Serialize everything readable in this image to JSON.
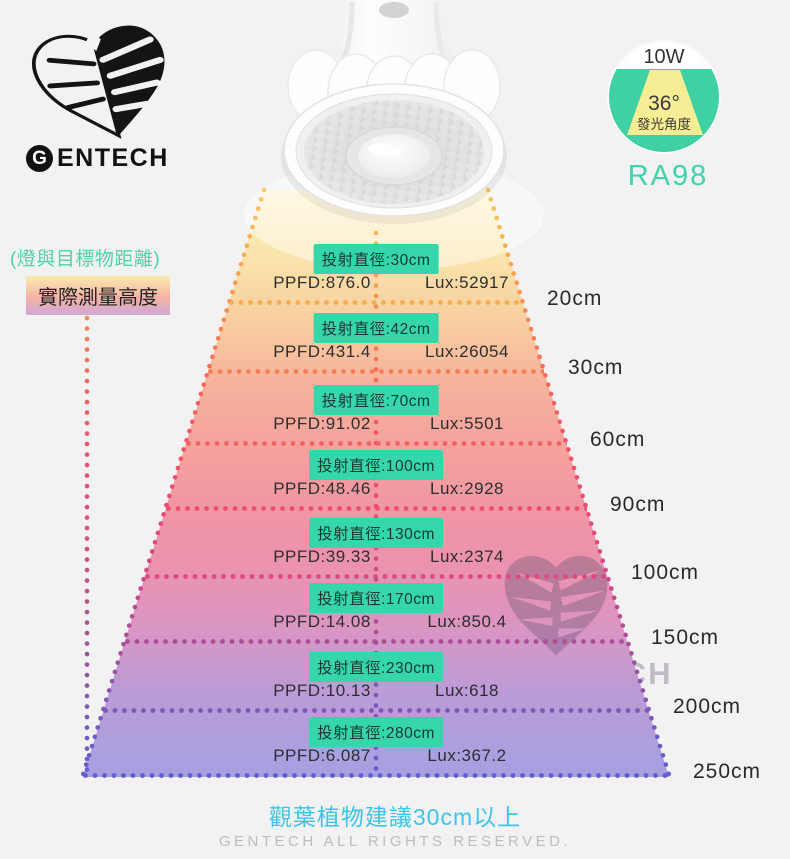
{
  "brand": {
    "initial": "G",
    "rest": "ENTECH",
    "full": "GENTECH"
  },
  "spec_badge": {
    "wattage": "10W",
    "beam_angle": "36°",
    "beam_angle_label": "發光角度",
    "cri": "RA98"
  },
  "left_labels": {
    "distance_note": "(燈與目標物距離)",
    "height_label": "實際測量高度"
  },
  "footer": {
    "recommendation": "觀葉植物建議30cm以上",
    "rights": "GENTECH ALL RIGHTS RESERVED."
  },
  "colors": {
    "background": "#F2F2F2",
    "teal_accent": "#3ED4AC",
    "badge_teal": "#35D6AA",
    "note_cyan": "#3EC3EA",
    "watermark": "#5B4B68",
    "cone_top": "#FCF3C8",
    "cone_bottom": "#A6A0E2"
  },
  "rows": [
    {
      "diameter_label": "投射直徑:30cm",
      "ppfd": "PPFD:876.0",
      "lux": "Lux:52917",
      "distance": "20cm",
      "line_color": "#F8AC52"
    },
    {
      "diameter_label": "投射直徑:42cm",
      "ppfd": "PPFD:431.4",
      "lux": "Lux:26054",
      "distance": "30cm",
      "line_color": "#F67E55"
    },
    {
      "diameter_label": "投射直徑:70cm",
      "ppfd": "PPFD:91.02",
      "lux": "Lux:5501",
      "distance": "60cm",
      "line_color": "#F4625F"
    },
    {
      "diameter_label": "投射直徑:100cm",
      "ppfd": "PPFD:48.46",
      "lux": "Lux:2928",
      "distance": "90cm",
      "line_color": "#F14E6B"
    },
    {
      "diameter_label": "投射直徑:130cm",
      "ppfd": "PPFD:39.33",
      "lux": "Lux:2374",
      "distance": "100cm",
      "line_color": "#E04880"
    },
    {
      "diameter_label": "投射直徑:170cm",
      "ppfd": "PPFD:14.08",
      "lux": "Lux:850.4",
      "distance": "150cm",
      "line_color": "#A94F97"
    },
    {
      "diameter_label": "投射直徑:230cm",
      "ppfd": "PPFD:10.13",
      "lux": "Lux:618",
      "distance": "200cm",
      "line_color": "#7E57BB"
    },
    {
      "diameter_label": "投射直徑:280cm",
      "ppfd": "PPFD:6.087",
      "lux": "Lux:367.2",
      "distance": "250cm",
      "line_color": "#5F5ED3"
    }
  ],
  "chart_data": {
    "type": "table",
    "title": "10W 36° 投射距離 / 照度對照",
    "columns": [
      "實際測量高度",
      "投射直徑",
      "PPFD",
      "Lux"
    ],
    "rows": [
      [
        "20cm",
        "30cm",
        876.0,
        52917
      ],
      [
        "30cm",
        "42cm",
        431.4,
        26054
      ],
      [
        "60cm",
        "70cm",
        91.02,
        5501
      ],
      [
        "90cm",
        "100cm",
        48.46,
        2928
      ],
      [
        "100cm",
        "130cm",
        39.33,
        2374
      ],
      [
        "150cm",
        "170cm",
        14.08,
        850.4
      ],
      [
        "200cm",
        "230cm",
        10.13,
        618
      ],
      [
        "250cm",
        "280cm",
        6.087,
        367.2
      ]
    ]
  }
}
